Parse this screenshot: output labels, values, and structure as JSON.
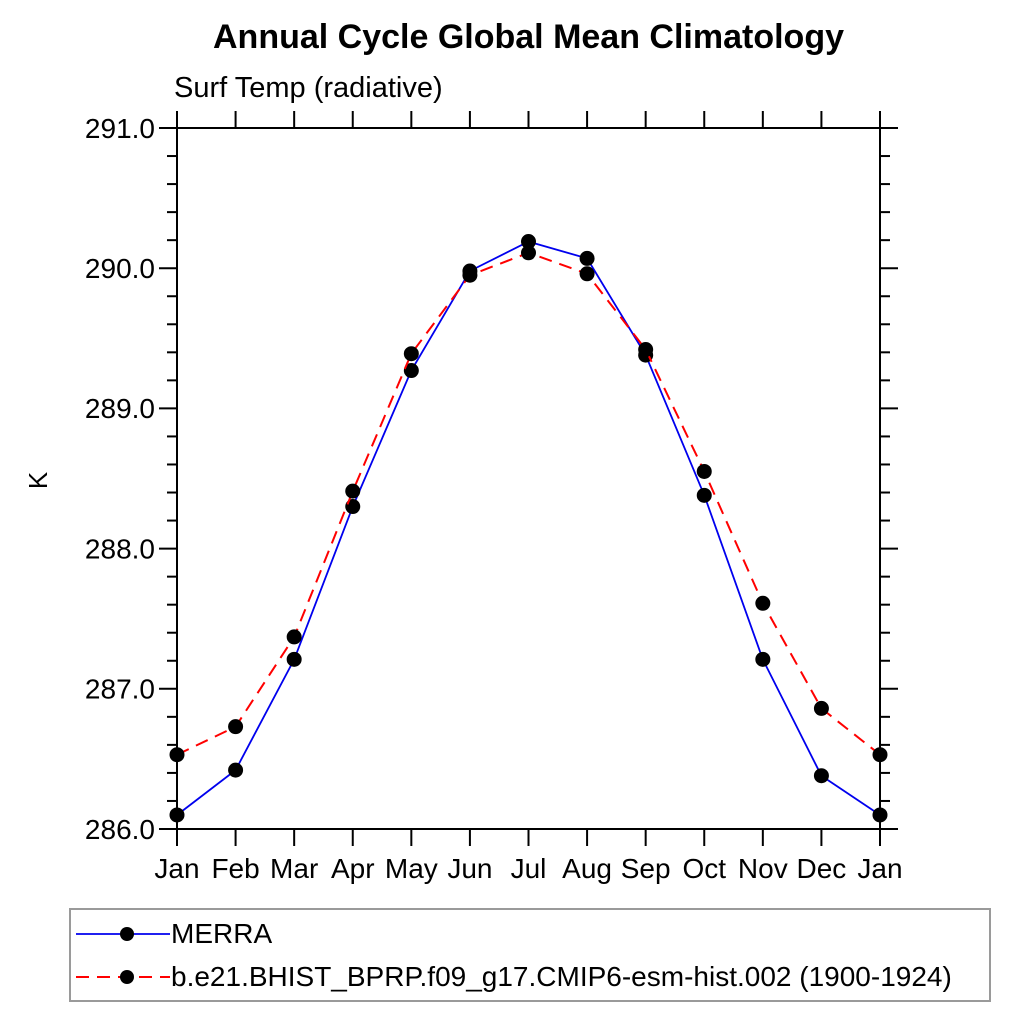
{
  "title": "Annual Cycle Global Mean Climatology",
  "subtitle": "Surf Temp (radiative)",
  "chart_data": {
    "type": "line",
    "x_categories": [
      "Jan",
      "Feb",
      "Mar",
      "Apr",
      "May",
      "Jun",
      "Jul",
      "Aug",
      "Sep",
      "Oct",
      "Nov",
      "Dec",
      "Jan"
    ],
    "ylabel": "K",
    "ylim": [
      286.0,
      291.0
    ],
    "ytick_labels": [
      "286.0",
      "287.0",
      "288.0",
      "289.0",
      "290.0",
      "291.0"
    ],
    "ytick_values": [
      286.0,
      287.0,
      288.0,
      289.0,
      290.0,
      291.0
    ],
    "ytick_minor_step": 0.2,
    "grid": false,
    "legend_position": "bottom-left",
    "frame_color": "#000000",
    "marker_color": "#000000",
    "series": [
      {
        "name": "MERRA",
        "color": "#0000ee",
        "style": "solid",
        "marker": "circle",
        "values": [
          286.1,
          286.42,
          287.21,
          288.3,
          289.27,
          289.98,
          290.19,
          290.07,
          289.38,
          288.38,
          287.21,
          286.38,
          286.1
        ]
      },
      {
        "name": "b.e21.BHIST_BPRP.f09_g17.CMIP6-esm-hist.002 (1900-1924)",
        "color": "#ff0000",
        "style": "dashed",
        "marker": "circle",
        "values": [
          286.53,
          286.73,
          287.37,
          288.41,
          289.39,
          289.95,
          290.11,
          289.96,
          289.42,
          288.55,
          287.61,
          286.86,
          286.53
        ]
      }
    ]
  }
}
